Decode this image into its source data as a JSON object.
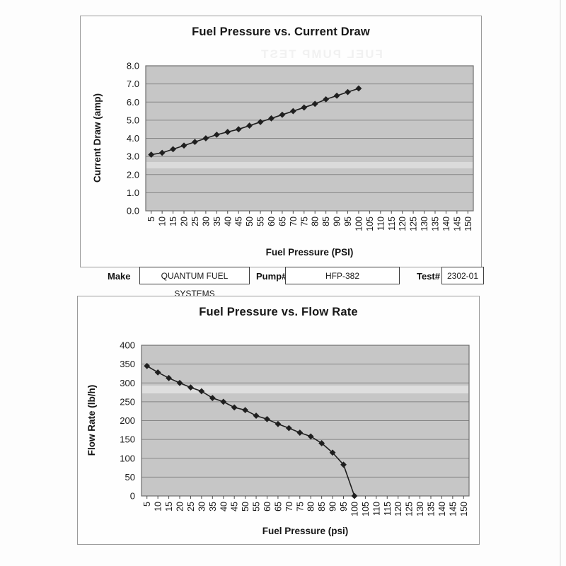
{
  "document": {
    "bleed_text": "FUEL PUMP TEST",
    "form": {
      "make_label": "Make",
      "make_value": "QUANTUM FUEL SYSTEMS",
      "pump_label": "Pump#",
      "pump_value": "HFP-382",
      "test_label": "Test#",
      "test_value": "2302-01"
    }
  },
  "chart_data": [
    {
      "type": "line",
      "title": "Fuel Pressure vs. Current Draw",
      "xlabel": "Fuel Pressure (PSI)",
      "ylabel": "Current Draw (amp)",
      "x": [
        5,
        10,
        15,
        20,
        25,
        30,
        35,
        40,
        45,
        50,
        55,
        60,
        65,
        70,
        75,
        80,
        85,
        90,
        95,
        100
      ],
      "values": [
        3.1,
        3.2,
        3.4,
        3.6,
        3.8,
        4.0,
        4.2,
        4.35,
        4.5,
        4.7,
        4.9,
        5.1,
        5.3,
        5.5,
        5.7,
        5.9,
        6.15,
        6.35,
        6.55,
        6.75
      ],
      "x_ticklabels": [
        "5",
        "10",
        "15",
        "20",
        "25",
        "30",
        "35",
        "40",
        "45",
        "50",
        "55",
        "60",
        "65",
        "70",
        "75",
        "80",
        "85",
        "90",
        "95",
        "100",
        "105",
        "110",
        "115",
        "120",
        "125",
        "130",
        "135",
        "140",
        "145",
        "150"
      ],
      "ylim": [
        0,
        8
      ],
      "ytick_step": 1,
      "y_ticklabels": [
        "0.0",
        "1.0",
        "2.0",
        "3.0",
        "4.0",
        "5.0",
        "6.0",
        "7.0",
        "8.0"
      ],
      "grid": "horizontal",
      "legend": "none",
      "marker": "diamond",
      "line_color": "#1f1f1f",
      "plot_bg": "#c6c6c6"
    },
    {
      "type": "line",
      "title": "Fuel Pressure vs. Flow Rate",
      "xlabel": "Fuel Pressure (psi)",
      "ylabel": "Flow Rate (lb/h)",
      "x": [
        5,
        10,
        15,
        20,
        25,
        30,
        35,
        40,
        45,
        50,
        55,
        60,
        65,
        70,
        75,
        80,
        85,
        90,
        95,
        100
      ],
      "values": [
        345,
        328,
        313,
        300,
        288,
        278,
        260,
        250,
        235,
        228,
        213,
        204,
        191,
        180,
        168,
        158,
        140,
        115,
        83,
        0
      ],
      "x_ticklabels": [
        "5",
        "10",
        "15",
        "20",
        "25",
        "30",
        "35",
        "40",
        "45",
        "50",
        "55",
        "60",
        "65",
        "70",
        "75",
        "80",
        "85",
        "90",
        "95",
        "100",
        "105",
        "110",
        "115",
        "120",
        "125",
        "130",
        "135",
        "140",
        "145",
        "150"
      ],
      "ylim": [
        0,
        400
      ],
      "ytick_step": 50,
      "y_ticklabels": [
        "0",
        "50",
        "100",
        "150",
        "200",
        "250",
        "300",
        "350",
        "400"
      ],
      "grid": "horizontal",
      "legend": "none",
      "marker": "diamond",
      "line_color": "#1f1f1f",
      "plot_bg": "#c6c6c6"
    }
  ]
}
